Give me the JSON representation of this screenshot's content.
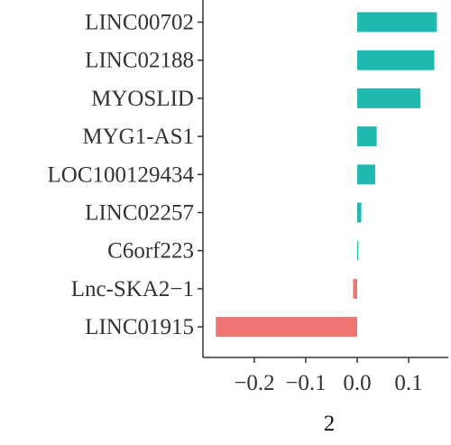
{
  "chart_data": {
    "type": "bar",
    "orientation": "horizontal",
    "categories": [
      "LINC00702",
      "LINC02188",
      "MYOSLID",
      "MYG1-AS1",
      "LOC100129434",
      "LINC02257",
      "C6orf223",
      "Lnc-SKA2−1",
      "LINC01915"
    ],
    "values": [
      0.155,
      0.15,
      0.123,
      0.038,
      0.035,
      0.008,
      0.002,
      -0.008,
      -0.275
    ],
    "xlabel": "2",
    "ylabel": "",
    "xlim": [
      -0.28,
      0.16
    ],
    "xticks": [
      -0.2,
      -0.1,
      0.0,
      0.1
    ],
    "xtick_labels": [
      "−0.2",
      "−0.1",
      "0.0",
      "0.1"
    ],
    "colors": {
      "positive": "#20B8B0",
      "negative": "#EF7572",
      "axis": "#333333"
    },
    "grid": false,
    "legend": "none"
  }
}
